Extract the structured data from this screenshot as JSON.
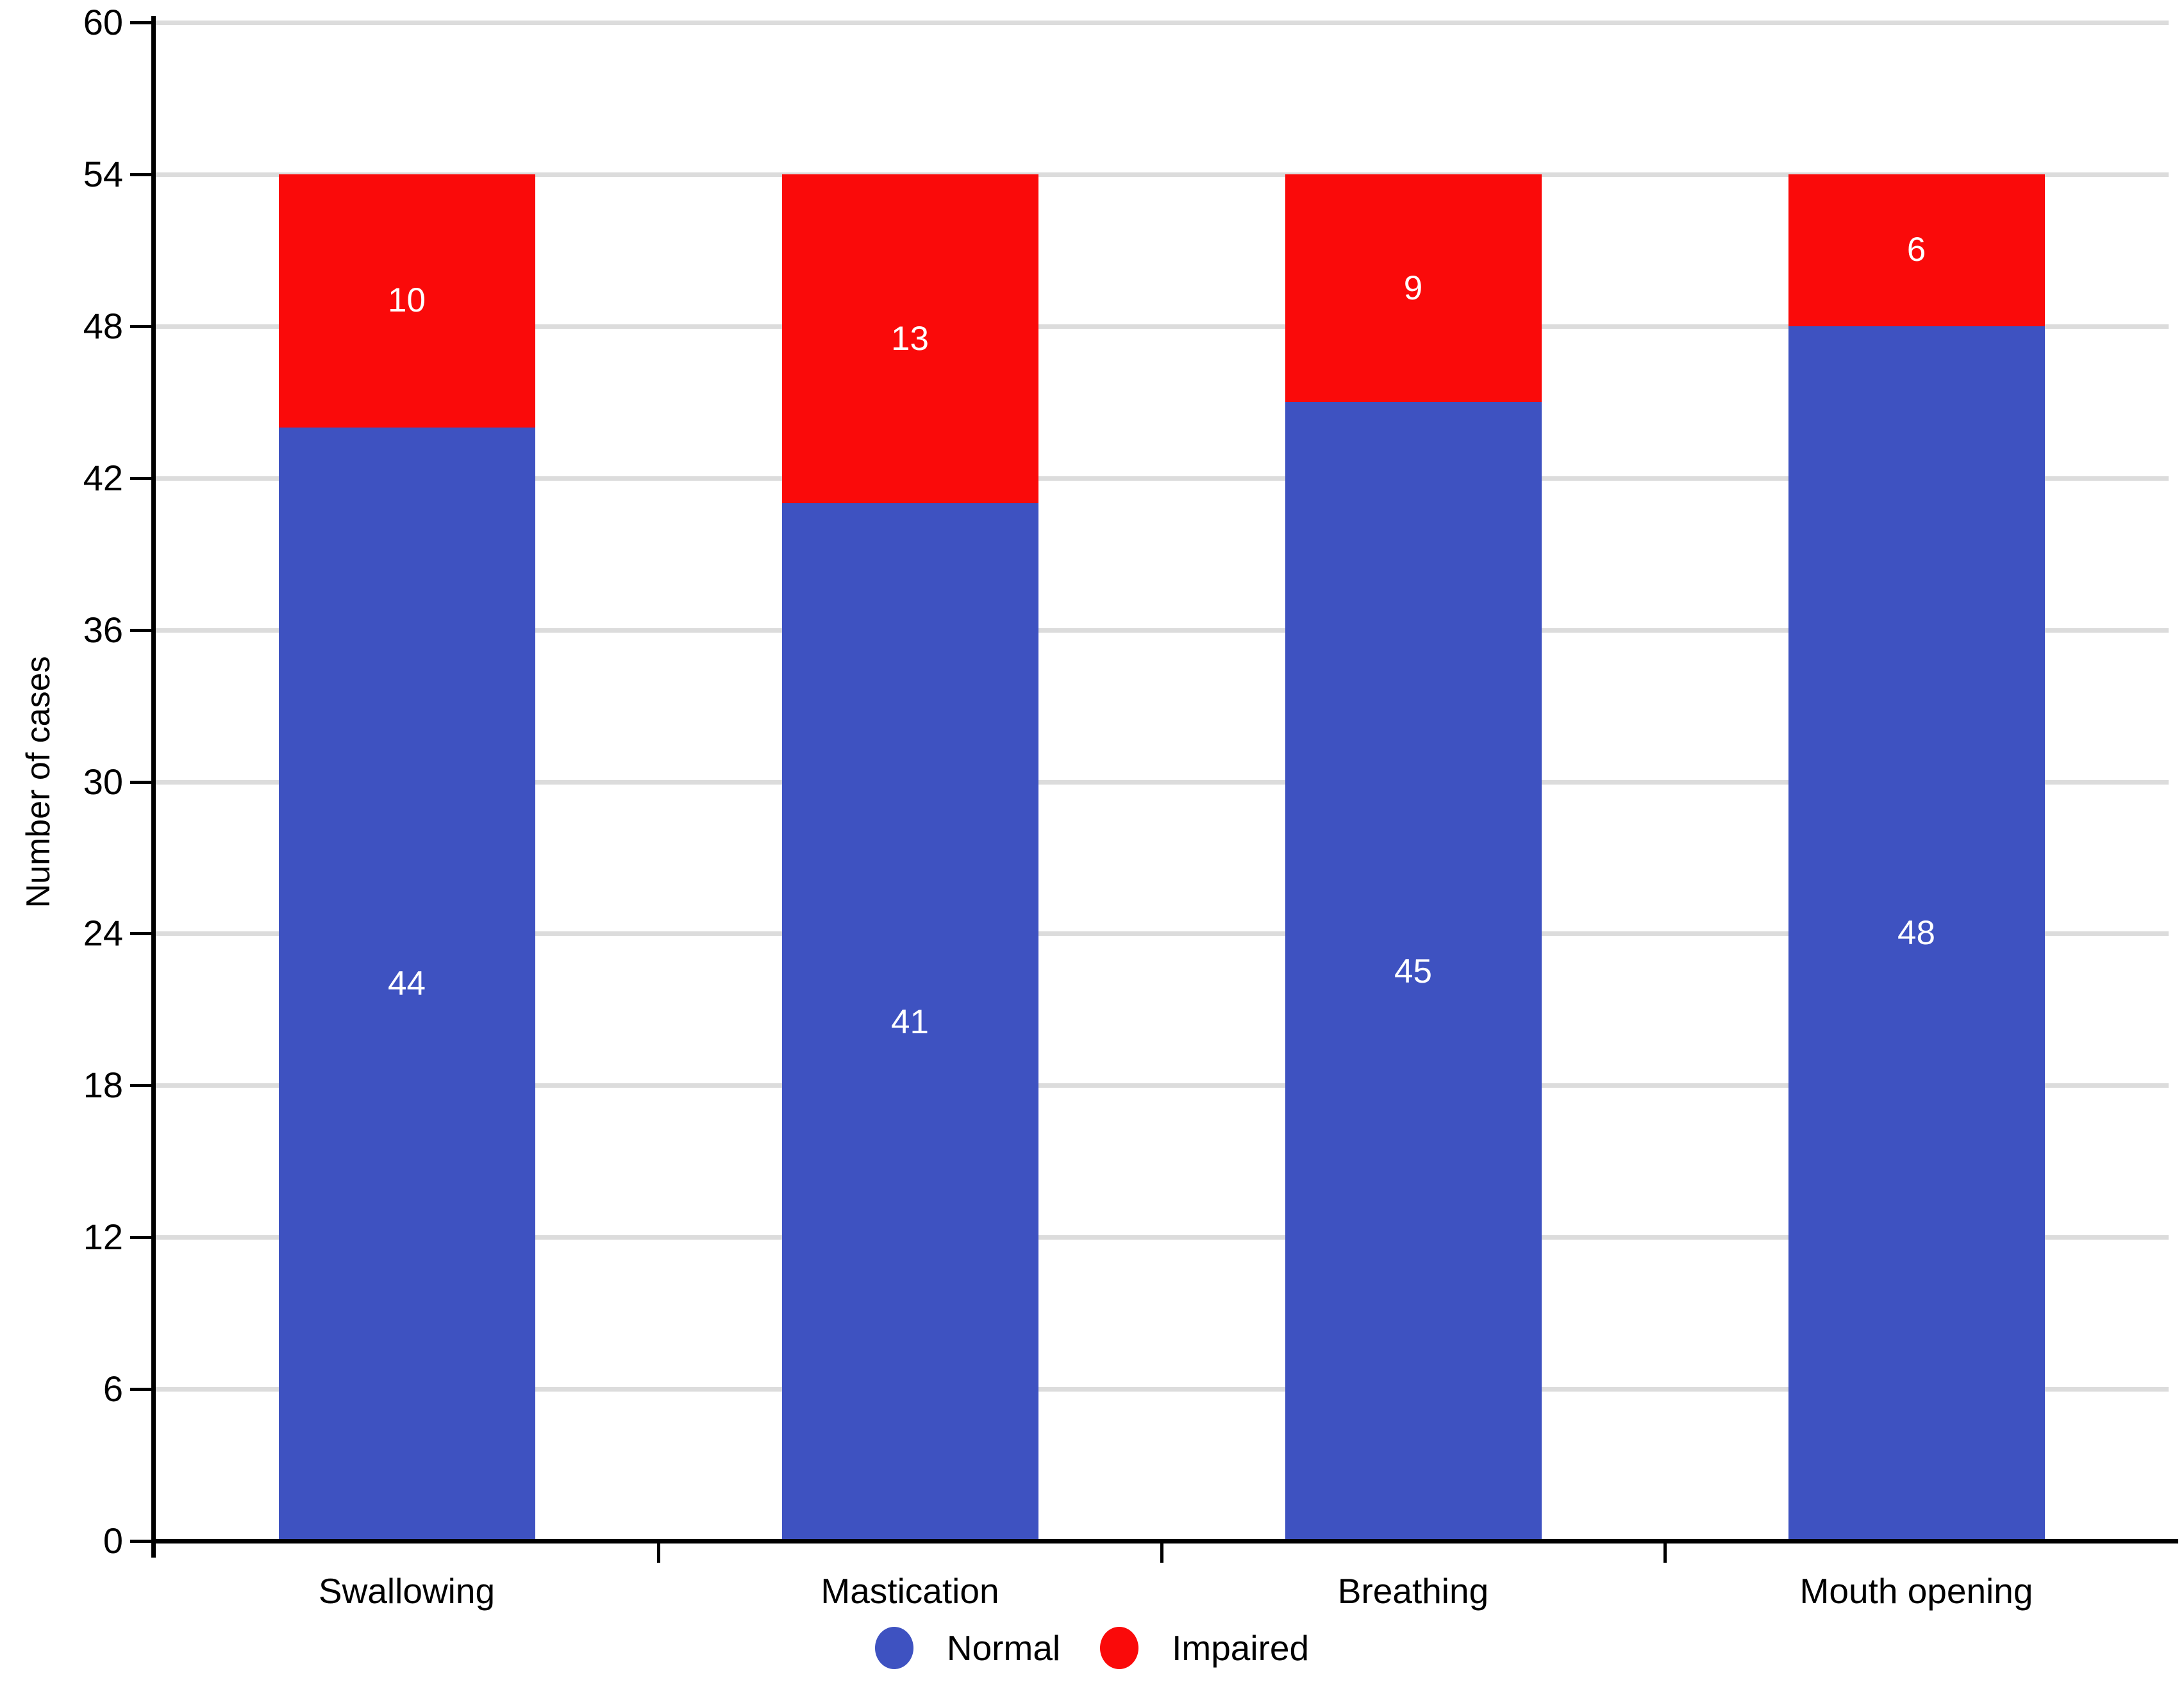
{
  "chart_data": {
    "type": "bar",
    "stacked": true,
    "categories": [
      "Swallowing",
      "Mastication",
      "Breathing",
      "Mouth opening"
    ],
    "series": [
      {
        "name": "Normal",
        "color": "#3E52C1",
        "values": [
          44,
          41,
          45,
          48
        ]
      },
      {
        "name": "Impaired",
        "color": "#FA0A0A",
        "values": [
          10,
          13,
          9,
          6
        ]
      }
    ],
    "title": "",
    "xlabel": "",
    "ylabel": "Number of cases",
    "ylim": [
      0,
      60
    ],
    "yticks": [
      0,
      6,
      12,
      18,
      24,
      30,
      36,
      42,
      48,
      54,
      60
    ],
    "grid": "horizontal",
    "gridline_color": "#DCDCDC",
    "axis_color": "#000000",
    "bar_label_color": "#ffffff",
    "legend_position": "bottom"
  }
}
